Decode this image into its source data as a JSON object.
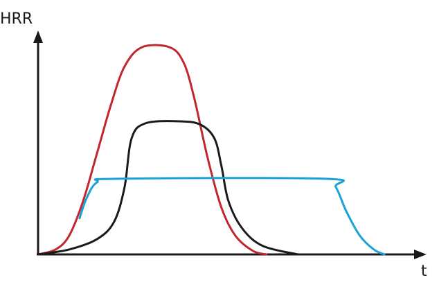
{
  "chart_data": {
    "type": "line",
    "y_label": "HRR",
    "x_label": "t",
    "xlim": [
      0,
      100
    ],
    "ylim": [
      0,
      100
    ],
    "series": [
      {
        "color": "#c0272d",
        "x": [
          0,
          4.5,
          8,
          11.6,
          15.2,
          18.8,
          22.3,
          26.8,
          33.9,
          37.5,
          40.2,
          43.8,
          47.3,
          50.9,
          55.4,
          58.9
        ],
        "values": [
          0,
          2.2,
          8.4,
          24,
          45.6,
          67.5,
          84.7,
          93.4,
          93.4,
          86.6,
          71,
          43,
          21,
          8.4,
          1.6,
          0
        ]
      },
      {
        "color": "#1a1a1a",
        "x": [
          0,
          8,
          15.2,
          19.6,
          22.3,
          24.1,
          27.7,
          36.6,
          42,
          45.5,
          47.3,
          49.1,
          52.7,
          58,
          67
        ],
        "values": [
          0,
          2.2,
          6.9,
          14.7,
          30.3,
          52.2,
          59.1,
          60,
          58.4,
          52.2,
          39.7,
          24,
          11.6,
          3.8,
          0
        ]
      },
      {
        "color": "#1ba1d6",
        "x": [
          10.7,
          12.5,
          15.2,
          20.5,
          74.1,
          76.8,
          79.5,
          83,
          86.6,
          89.3
        ],
        "values": [
          16.3,
          25.3,
          32.5,
          34.1,
          34.1,
          30.3,
          19.4,
          8.4,
          2.2,
          0
        ]
      }
    ]
  }
}
